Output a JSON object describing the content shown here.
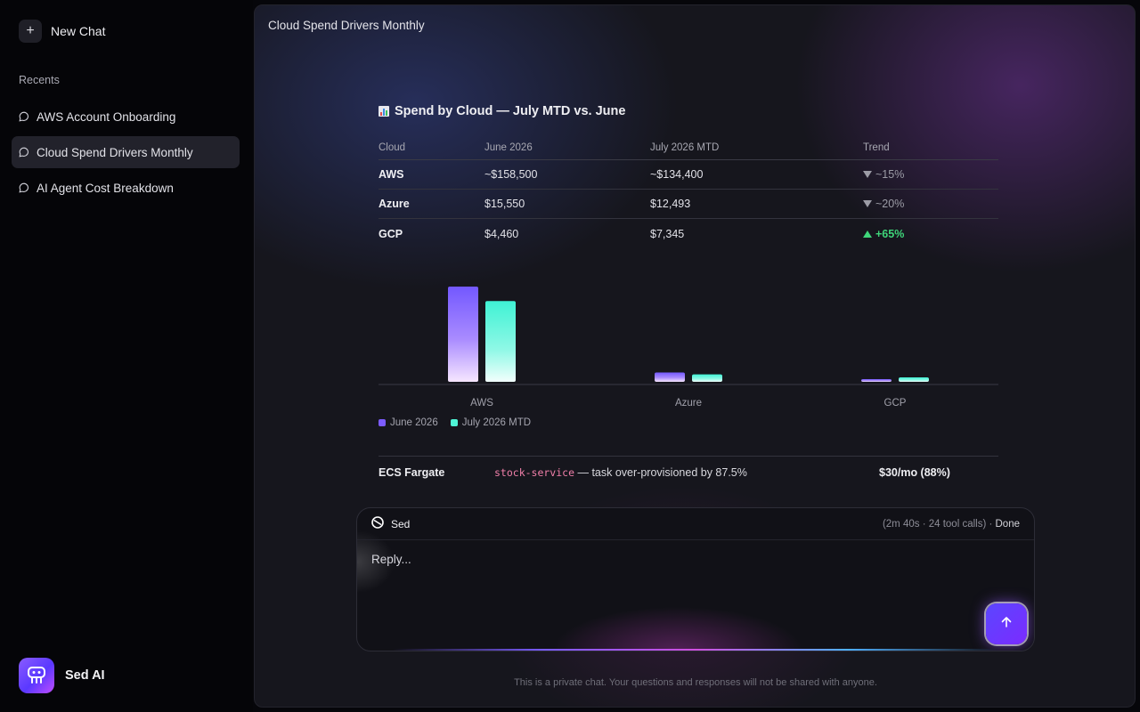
{
  "sidebar": {
    "new_chat_label": "New Chat",
    "recents_title": "Recents",
    "items": [
      {
        "label": "AWS Account Onboarding",
        "active": false
      },
      {
        "label": "Cloud Spend Drivers Monthly",
        "active": true
      },
      {
        "label": "AI Agent Cost Breakdown",
        "active": false
      }
    ],
    "brand_name": "Sed AI"
  },
  "main": {
    "title": "Cloud Spend Drivers Monthly",
    "section_title": "Spend by Cloud — July MTD vs. June",
    "table": {
      "headers": [
        "Cloud",
        "June 2026",
        "July 2026 MTD",
        "Trend"
      ],
      "rows": [
        {
          "cloud": "AWS",
          "june": "~$158,500",
          "july": "~$134,400",
          "trend": "~15%",
          "direction": "down"
        },
        {
          "cloud": "Azure",
          "june": "$15,550",
          "july": "$12,493",
          "trend": "~20%",
          "direction": "down"
        },
        {
          "cloud": "GCP",
          "june": "$4,460",
          "july": "$7,345",
          "trend": "+65%",
          "direction": "up"
        }
      ]
    },
    "fargate": {
      "service": "ECS Fargate",
      "code": "stock-service",
      "description": " — task over-provisioned by 87.5%",
      "cost": "$30/mo (88%)"
    },
    "composer": {
      "agent_name": "Sed",
      "meta": "(2m 40s · 24 tool calls) · ",
      "status": "Done",
      "placeholder": "Reply..."
    },
    "footnote": "This is a private chat. Your questions and responses will not be shared with anyone."
  },
  "colors": {
    "june": "#7c5cff",
    "july": "#4ff5d6",
    "trend_up": "#3fd67a",
    "code": "#f07fa9"
  },
  "chart_data": {
    "type": "bar",
    "categories": [
      "AWS",
      "Azure",
      "GCP"
    ],
    "series": [
      {
        "name": "June 2026",
        "values": [
          158500,
          15550,
          4460
        ]
      },
      {
        "name": "July 2026 MTD",
        "values": [
          134400,
          12493,
          7345
        ]
      }
    ]
  }
}
